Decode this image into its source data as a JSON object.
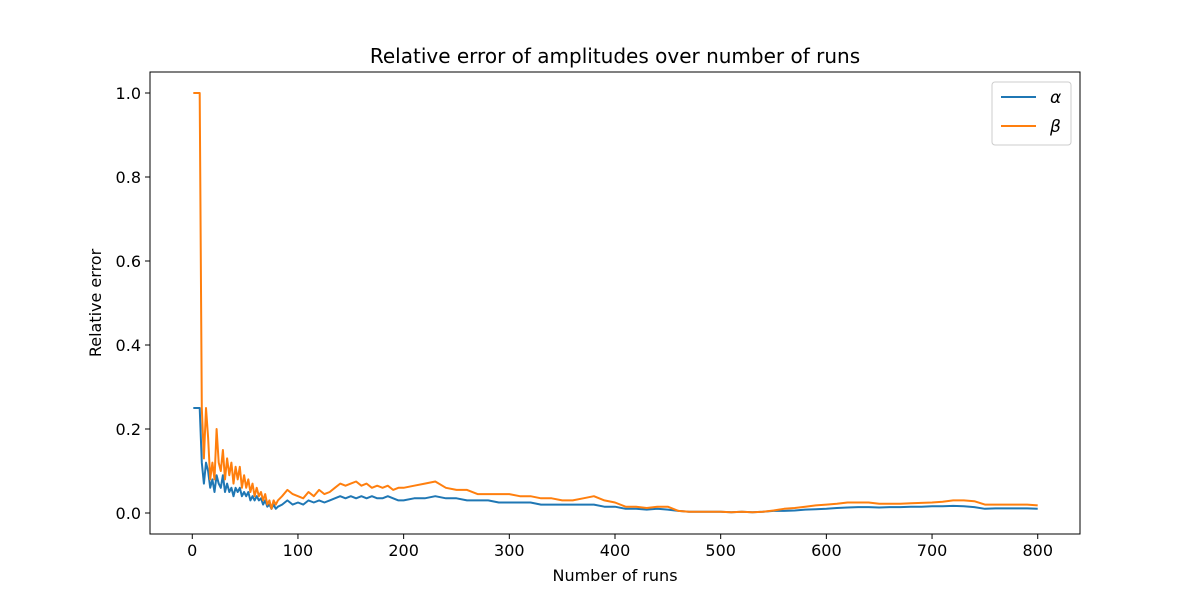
{
  "chart_data": {
    "type": "line",
    "title": "Relative error of amplitudes over number of runs",
    "xlabel": "Number of runs",
    "ylabel": "Relative error",
    "xlim": [
      -40,
      840
    ],
    "ylim": [
      -0.05,
      1.05
    ],
    "xticks": [
      0,
      100,
      200,
      300,
      400,
      500,
      600,
      700,
      800
    ],
    "yticks": [
      0.0,
      0.2,
      0.4,
      0.6,
      0.8,
      1.0
    ],
    "legend_position": "top-right",
    "grid": false,
    "series": [
      {
        "name": "α",
        "color": "#1f77b4",
        "x": [
          1,
          5,
          7,
          9,
          11,
          13,
          15,
          17,
          19,
          21,
          23,
          25,
          27,
          29,
          31,
          33,
          35,
          37,
          39,
          41,
          43,
          45,
          47,
          49,
          51,
          53,
          55,
          57,
          59,
          61,
          63,
          65,
          67,
          69,
          71,
          73,
          75,
          77,
          79,
          81,
          85,
          90,
          95,
          100,
          105,
          110,
          115,
          120,
          125,
          130,
          135,
          140,
          145,
          150,
          155,
          160,
          165,
          170,
          175,
          180,
          185,
          190,
          195,
          200,
          210,
          220,
          230,
          240,
          250,
          260,
          270,
          280,
          290,
          300,
          310,
          320,
          330,
          340,
          350,
          360,
          370,
          380,
          390,
          400,
          410,
          420,
          430,
          440,
          450,
          460,
          470,
          480,
          490,
          500,
          510,
          520,
          530,
          540,
          550,
          560,
          570,
          580,
          590,
          600,
          610,
          620,
          630,
          640,
          650,
          660,
          670,
          680,
          690,
          700,
          710,
          720,
          730,
          740,
          750,
          760,
          770,
          780,
          790,
          800
        ],
        "y": [
          0.25,
          0.25,
          0.25,
          0.12,
          0.07,
          0.12,
          0.1,
          0.06,
          0.08,
          0.05,
          0.09,
          0.07,
          0.06,
          0.09,
          0.05,
          0.07,
          0.05,
          0.06,
          0.04,
          0.06,
          0.05,
          0.06,
          0.04,
          0.05,
          0.04,
          0.05,
          0.03,
          0.04,
          0.03,
          0.04,
          0.03,
          0.035,
          0.02,
          0.03,
          0.015,
          0.02,
          0.01,
          0.02,
          0.01,
          0.015,
          0.02,
          0.03,
          0.02,
          0.025,
          0.02,
          0.03,
          0.025,
          0.03,
          0.025,
          0.03,
          0.035,
          0.04,
          0.035,
          0.04,
          0.035,
          0.04,
          0.035,
          0.04,
          0.035,
          0.035,
          0.04,
          0.035,
          0.03,
          0.03,
          0.035,
          0.035,
          0.04,
          0.035,
          0.035,
          0.03,
          0.03,
          0.03,
          0.025,
          0.025,
          0.025,
          0.025,
          0.02,
          0.02,
          0.02,
          0.02,
          0.02,
          0.02,
          0.015,
          0.015,
          0.01,
          0.01,
          0.008,
          0.01,
          0.008,
          0.005,
          0.003,
          0.003,
          0.003,
          0.003,
          0.002,
          0.003,
          0.002,
          0.003,
          0.005,
          0.005,
          0.006,
          0.008,
          0.009,
          0.01,
          0.012,
          0.013,
          0.014,
          0.014,
          0.013,
          0.014,
          0.014,
          0.015,
          0.015,
          0.016,
          0.016,
          0.017,
          0.016,
          0.014,
          0.01,
          0.011,
          0.011,
          0.011,
          0.011,
          0.01
        ]
      },
      {
        "name": "β",
        "color": "#ff7f0e",
        "x": [
          1,
          5,
          7,
          9,
          11,
          13,
          15,
          17,
          19,
          21,
          23,
          25,
          27,
          29,
          31,
          33,
          35,
          37,
          39,
          41,
          43,
          45,
          47,
          49,
          51,
          53,
          55,
          57,
          59,
          61,
          63,
          65,
          67,
          69,
          71,
          73,
          75,
          77,
          79,
          81,
          85,
          90,
          95,
          100,
          105,
          110,
          115,
          120,
          125,
          130,
          135,
          140,
          145,
          150,
          155,
          160,
          165,
          170,
          175,
          180,
          185,
          190,
          195,
          200,
          210,
          220,
          230,
          240,
          250,
          260,
          270,
          280,
          290,
          300,
          310,
          320,
          330,
          340,
          350,
          360,
          370,
          380,
          390,
          400,
          410,
          420,
          430,
          440,
          450,
          460,
          470,
          480,
          490,
          500,
          510,
          520,
          530,
          540,
          550,
          560,
          570,
          580,
          590,
          600,
          610,
          620,
          630,
          640,
          650,
          660,
          670,
          680,
          690,
          700,
          710,
          720,
          730,
          740,
          750,
          760,
          770,
          780,
          790,
          800
        ],
        "y": [
          1.0,
          1.0,
          1.0,
          0.25,
          0.13,
          0.25,
          0.18,
          0.08,
          0.12,
          0.08,
          0.2,
          0.12,
          0.1,
          0.15,
          0.08,
          0.13,
          0.09,
          0.12,
          0.07,
          0.11,
          0.08,
          0.11,
          0.06,
          0.09,
          0.06,
          0.08,
          0.05,
          0.07,
          0.04,
          0.06,
          0.04,
          0.05,
          0.03,
          0.045,
          0.02,
          0.03,
          0.01,
          0.03,
          0.02,
          0.03,
          0.04,
          0.055,
          0.045,
          0.04,
          0.035,
          0.05,
          0.04,
          0.055,
          0.045,
          0.05,
          0.06,
          0.07,
          0.065,
          0.07,
          0.075,
          0.065,
          0.07,
          0.06,
          0.065,
          0.06,
          0.065,
          0.055,
          0.06,
          0.06,
          0.065,
          0.07,
          0.075,
          0.06,
          0.055,
          0.055,
          0.045,
          0.045,
          0.045,
          0.045,
          0.04,
          0.04,
          0.035,
          0.035,
          0.03,
          0.03,
          0.035,
          0.04,
          0.03,
          0.025,
          0.015,
          0.015,
          0.012,
          0.015,
          0.015,
          0.005,
          0.003,
          0.003,
          0.003,
          0.003,
          0.002,
          0.003,
          0.002,
          0.003,
          0.006,
          0.01,
          0.012,
          0.015,
          0.018,
          0.02,
          0.022,
          0.025,
          0.025,
          0.025,
          0.022,
          0.022,
          0.022,
          0.023,
          0.024,
          0.025,
          0.027,
          0.03,
          0.03,
          0.028,
          0.02,
          0.02,
          0.02,
          0.02,
          0.02,
          0.018
        ]
      }
    ]
  }
}
